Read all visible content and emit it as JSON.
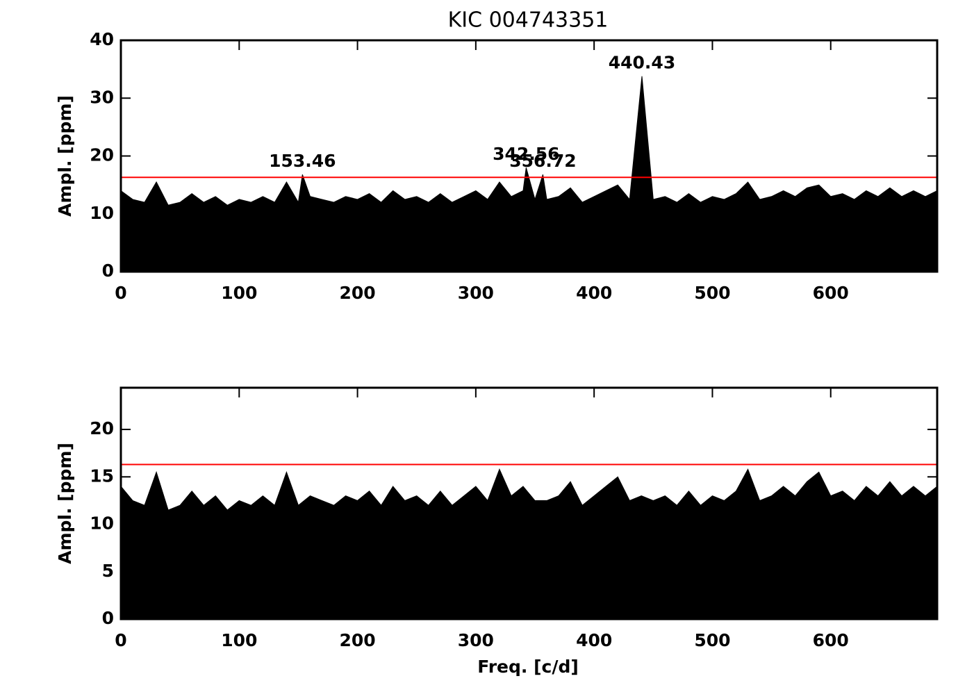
{
  "chart_data": [
    {
      "type": "area",
      "title": "KIC 004743351",
      "y_label": "Ampl. [ppm]",
      "color": "#000000",
      "x": [
        0,
        10,
        20,
        30,
        40,
        50,
        60,
        70,
        80,
        90,
        100,
        110,
        120,
        130,
        140,
        150,
        153.46,
        160,
        170,
        180,
        190,
        200,
        210,
        220,
        230,
        240,
        250,
        260,
        270,
        280,
        290,
        300,
        310,
        320,
        330,
        340,
        342.56,
        350,
        356.72,
        360,
        370,
        380,
        390,
        400,
        410,
        420,
        430,
        440.43,
        450,
        460,
        470,
        480,
        490,
        500,
        510,
        520,
        530,
        540,
        550,
        560,
        570,
        580,
        590,
        600,
        610,
        620,
        630,
        640,
        650,
        660,
        670,
        680,
        690
      ],
      "series": [
        {
          "values": [
            14,
            12.5,
            12,
            15.5,
            11.5,
            12,
            13.5,
            12,
            13,
            11.5,
            12.5,
            12,
            13,
            12,
            15.5,
            12,
            16.8,
            13,
            12.5,
            12,
            13,
            12.5,
            13.5,
            12,
            14,
            12.5,
            13,
            12,
            13.5,
            12,
            13,
            14,
            12.5,
            15.5,
            13,
            14,
            18,
            12.5,
            16.8,
            12.5,
            13,
            14.5,
            12,
            13,
            14,
            15,
            12.5,
            33.8,
            12.5,
            13,
            12,
            13.5,
            12,
            13,
            12.5,
            13.5,
            15.5,
            12.5,
            13,
            14,
            13,
            14.5,
            15,
            13,
            13.5,
            12.5,
            14,
            13,
            14.5,
            13,
            14,
            13,
            14
          ]
        }
      ],
      "annotations": [
        {
          "x": 153.46,
          "label": "153.46"
        },
        {
          "x": 342.56,
          "label": "342.56"
        },
        {
          "x": 356.72,
          "label": "356.72"
        },
        {
          "x": 440.43,
          "label": "440.43"
        }
      ],
      "threshold": 16.3,
      "threshold_color": "#ff0000",
      "xlim": [
        0,
        690
      ],
      "xticks": [
        0,
        100,
        200,
        300,
        400,
        500,
        600
      ],
      "ylim": [
        0,
        40
      ],
      "yticks": [
        0,
        10,
        20,
        30,
        40
      ]
    },
    {
      "type": "area",
      "y_label": "Ampl. [ppm]",
      "x_label": "Freq. [c/d]",
      "color": "#000000",
      "x": [
        0,
        10,
        20,
        30,
        40,
        50,
        60,
        70,
        80,
        90,
        100,
        110,
        120,
        130,
        140,
        150,
        160,
        170,
        180,
        190,
        200,
        210,
        220,
        230,
        240,
        250,
        260,
        270,
        280,
        290,
        300,
        310,
        320,
        330,
        340,
        350,
        360,
        370,
        380,
        390,
        400,
        410,
        420,
        430,
        440,
        450,
        460,
        470,
        480,
        490,
        500,
        510,
        520,
        530,
        540,
        550,
        560,
        570,
        580,
        590,
        600,
        610,
        620,
        630,
        640,
        650,
        660,
        670,
        680,
        690
      ],
      "series": [
        {
          "values": [
            14,
            12.5,
            12,
            15.5,
            11.5,
            12,
            13.5,
            12,
            13,
            11.5,
            12.5,
            12,
            13,
            12,
            15.5,
            12,
            13,
            12.5,
            12,
            13,
            12.5,
            13.5,
            12,
            14,
            12.5,
            13,
            12,
            13.5,
            12,
            13,
            14,
            12.5,
            15.8,
            13,
            14,
            12.5,
            12.5,
            13,
            14.5,
            12,
            13,
            14,
            15,
            12.5,
            13,
            12.5,
            13,
            12,
            13.5,
            12,
            13,
            12.5,
            13.5,
            15.8,
            12.5,
            13,
            14,
            13,
            14.5,
            15.5,
            13,
            13.5,
            12.5,
            14,
            13,
            14.5,
            13,
            14,
            13,
            14
          ]
        }
      ],
      "threshold": 16.3,
      "threshold_color": "#ff0000",
      "xlim": [
        0,
        690
      ],
      "xticks": [
        0,
        100,
        200,
        300,
        400,
        500,
        600
      ],
      "ylim": [
        0,
        24.4
      ],
      "yticks": [
        0,
        5,
        10,
        15,
        20
      ]
    }
  ]
}
